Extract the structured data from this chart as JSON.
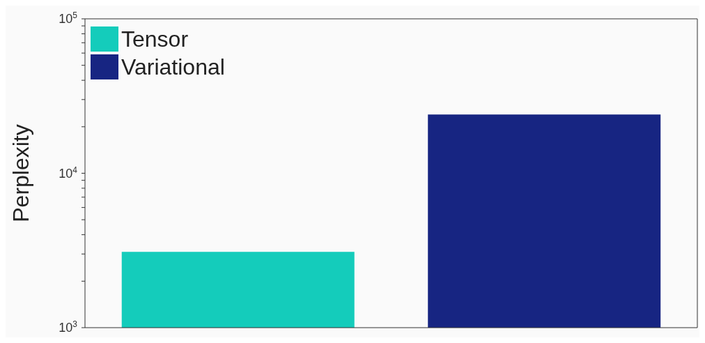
{
  "chart_data": {
    "type": "bar",
    "ylabel": "Perplexity",
    "categories": [
      null,
      null
    ],
    "series": [
      {
        "name": "Tensor",
        "color": "#14ccbb",
        "values": [
          3100,
          null
        ]
      },
      {
        "name": "Variational",
        "color": "#172582",
        "values": [
          null,
          24000
        ]
      }
    ],
    "log": true,
    "ylim": [
      1000,
      100000
    ],
    "yticks": [
      {
        "value": 1000,
        "label": "10$^{3}$"
      },
      {
        "value": 2000,
        "label": null
      },
      {
        "value": 3000,
        "label": null
      },
      {
        "value": 4000,
        "label": null
      },
      {
        "value": 5000,
        "label": null
      },
      {
        "value": 6000,
        "label": null
      },
      {
        "value": 7000,
        "label": null
      },
      {
        "value": 8000,
        "label": null
      },
      {
        "value": 9000,
        "label": null
      },
      {
        "value": 10000,
        "label": "10$^{4}$"
      },
      {
        "value": 20000,
        "label": null
      },
      {
        "value": 30000,
        "label": null
      },
      {
        "value": 40000,
        "label": null
      },
      {
        "value": 50000,
        "label": null
      },
      {
        "value": 60000,
        "label": null
      },
      {
        "value": 70000,
        "label": null
      },
      {
        "value": 80000,
        "label": null
      },
      {
        "value": 90000,
        "label": null
      },
      {
        "value": 100000,
        "label": "10$^{5}$"
      }
    ],
    "legend": "top left"
  }
}
